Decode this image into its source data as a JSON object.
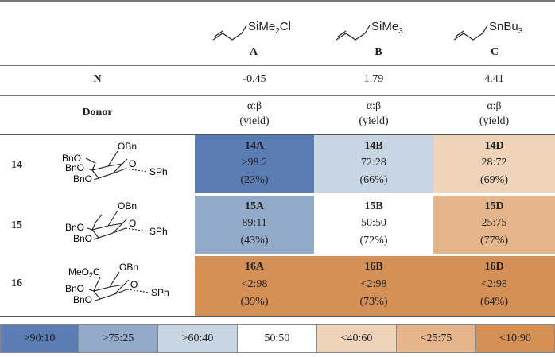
{
  "reagents": [
    {
      "formula_main": "SiMe",
      "formula_sub": "2",
      "formula_tail": "Cl",
      "letter": "A",
      "N": "-0.45",
      "ratio_label": "α:β",
      "yield_label": "(yield)"
    },
    {
      "formula_main": "SiMe",
      "formula_sub": "3",
      "formula_tail": "",
      "letter": "B",
      "N": "1.79",
      "ratio_label": "α:β",
      "yield_label": "(yield)"
    },
    {
      "formula_main": "SnBu",
      "formula_sub": "3",
      "formula_tail": "",
      "letter": "C",
      "N": "4.41",
      "ratio_label": "α:β",
      "yield_label": "(yield)"
    }
  ],
  "row_labels": {
    "N": "N",
    "donor": "Donor"
  },
  "donors": [
    {
      "id": "14",
      "sub": "OBn",
      "ring_labels": [
        "BnO",
        "BnO",
        "BnO",
        "OBn",
        "O",
        "SPh"
      ],
      "results": [
        {
          "label": "14A",
          "ratio": ">98:2",
          "yield": "(23%)",
          "color": "#5b7db3"
        },
        {
          "label": "14B",
          "ratio": "72:28",
          "yield": "(66%)",
          "color": "#c8d5e3"
        },
        {
          "label": "14D",
          "ratio": "28:72",
          "yield": "(69%)",
          "color": "#efd4b9"
        }
      ]
    },
    {
      "id": "15",
      "sub": "methyl",
      "ring_labels": [
        "BnO",
        "BnO",
        "OBn",
        "O",
        "SPh"
      ],
      "results": [
        {
          "label": "15A",
          "ratio": "89:11",
          "yield": "(43%)",
          "color": "#93abc8"
        },
        {
          "label": "15B",
          "ratio": "50:50",
          "yield": "(72%)",
          "color": "#ffffff"
        },
        {
          "label": "15D",
          "ratio": "25:75",
          "yield": "(77%)",
          "color": "#e5b58c"
        }
      ]
    },
    {
      "id": "16",
      "sub": "ester",
      "ring_labels": [
        "MeO",
        "2",
        "C",
        "BnO",
        "BnO",
        "OBn",
        "O",
        "SPh"
      ],
      "results": [
        {
          "label": "16A",
          "ratio": "<2:98",
          "yield": "(39%)",
          "color": "#d59058"
        },
        {
          "label": "16B",
          "ratio": "<2:98",
          "yield": "(73%)",
          "color": "#d59058"
        },
        {
          "label": "16D",
          "ratio": "<2:98",
          "yield": "(64%)",
          "color": "#d59058"
        }
      ]
    }
  ],
  "legend": [
    {
      "label": ">90:10",
      "color": "#5b7db3"
    },
    {
      "label": ">75:25",
      "color": "#93abc8"
    },
    {
      "label": ">60:40",
      "color": "#c8d5e3"
    },
    {
      "label": "50:50",
      "color": "#ffffff"
    },
    {
      "label": "<40:60",
      "color": "#efd4b9"
    },
    {
      "label": "<25:75",
      "color": "#e5b58c"
    },
    {
      "label": "<10:90",
      "color": "#d59058"
    }
  ]
}
